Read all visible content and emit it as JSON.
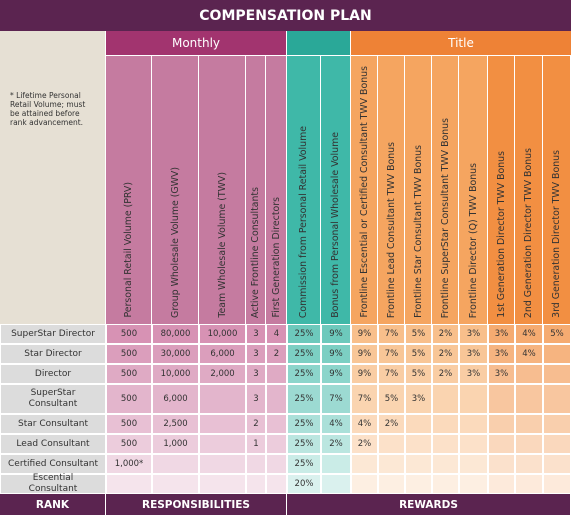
{
  "header": {
    "title": "COMPENSATION PLAN"
  },
  "groups": {
    "monthly": "Monthly",
    "title": "Title"
  },
  "note": "* Lifetime Personal Retail Volume; must be attained before rank advancement.",
  "columns": [
    "Personal Retail Volume (PRV)",
    "Group Wholesale Volume (GWV)",
    "Team Wholesale Volume (TWV)",
    "Active Frontline Consultants",
    "First Generation Directors",
    "Commission from Personal Retail Volume",
    "Bonus from Personal Wholesale Volume",
    "Frontline Escential or Certified Consultant TWV Bonus",
    "Frontline Lead Consultant TWV Bonus",
    "Frontline Star Consultant TWV Bonus",
    "Frontline SuperStar Consultant TWV Bonus",
    "Frontline Director (Q) TWV Bonus",
    "1st Generation Director TWV Bonus",
    "2nd Generation Director TWV Bonus",
    "3rd Generation Director TWV Bonus"
  ],
  "rows": [
    {
      "rank": "SuperStar Director",
      "cells": [
        "500",
        "80,000",
        "10,000",
        "3",
        "4",
        "25%",
        "9%",
        "9%",
        "7%",
        "5%",
        "2%",
        "3%",
        "3%",
        "4%",
        "5%"
      ]
    },
    {
      "rank": "Star Director",
      "cells": [
        "500",
        "30,000",
        "6,000",
        "3",
        "2",
        "25%",
        "9%",
        "9%",
        "7%",
        "5%",
        "2%",
        "3%",
        "3%",
        "4%",
        null
      ]
    },
    {
      "rank": "Director",
      "cells": [
        "500",
        "10,000",
        "2,000",
        "3",
        null,
        "25%",
        "9%",
        "9%",
        "7%",
        "5%",
        "2%",
        "3%",
        "3%",
        null,
        null
      ]
    },
    {
      "rank": "SuperStar Consultant",
      "cells": [
        "500",
        "6,000",
        null,
        "3",
        null,
        "25%",
        "7%",
        "7%",
        "5%",
        "3%",
        null,
        null,
        null,
        null,
        null
      ]
    },
    {
      "rank": "Star Consultant",
      "cells": [
        "500",
        "2,500",
        null,
        "2",
        null,
        "25%",
        "4%",
        "4%",
        "2%",
        null,
        null,
        null,
        null,
        null,
        null
      ]
    },
    {
      "rank": "Lead Consultant",
      "cells": [
        "500",
        "1,000",
        null,
        "1",
        null,
        "25%",
        "2%",
        "2%",
        null,
        null,
        null,
        null,
        null,
        null,
        null
      ]
    },
    {
      "rank": "Certified Consultant",
      "cells": [
        "1,000*",
        null,
        null,
        null,
        null,
        "25%",
        null,
        null,
        null,
        null,
        null,
        null,
        null,
        null,
        null
      ]
    },
    {
      "rank": "Escential Consultant",
      "cells": [
        null,
        null,
        null,
        null,
        null,
        "20%",
        null,
        null,
        null,
        null,
        null,
        null,
        null,
        null,
        null
      ]
    }
  ],
  "footer": {
    "rank": "RANK",
    "responsibilities": "RESPONSIBILITIES",
    "rewards": "REWARDS"
  }
}
